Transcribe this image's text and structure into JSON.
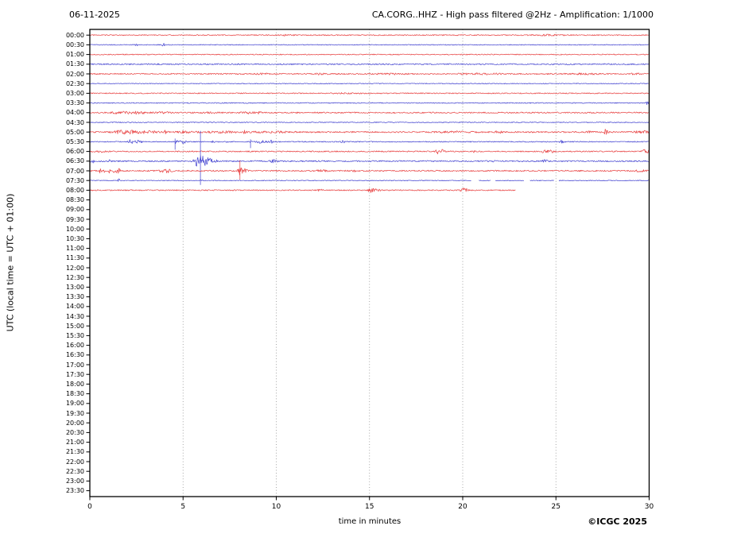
{
  "header": {
    "date": "06-11-2025",
    "title": "CA.CORG..HHZ - High pass filtered @2Hz - Amplification: 1/1000"
  },
  "footer": {
    "copyright": "©ICGC 2025"
  },
  "chart_data": {
    "type": "line",
    "subtype": "helicorder-seismogram",
    "title_left": "06-11-2025",
    "title_right": "CA.CORG..HHZ - High pass filtered @2Hz - Amplification: 1/1000",
    "xlabel": "time in minutes",
    "ylabel": "UTC (local time = UTC + 01:00)",
    "xlim": [
      0,
      30
    ],
    "x_ticks": [
      0,
      5,
      10,
      15,
      20,
      25,
      30
    ],
    "grid": "vertical-dotted-every-5-min",
    "legend": "none",
    "colors": {
      "trace_red": "#e63232",
      "trace_blue": "#3232cc",
      "grid": "#909090",
      "axis": "#000000"
    },
    "minutes_per_row": 30,
    "rows": [
      {
        "label": "00:00",
        "color": "red",
        "base": 0.65,
        "end": 30,
        "events": [
          [
            10.5,
            0.5,
            0.5
          ],
          [
            24.5,
            0.5,
            1.0
          ]
        ]
      },
      {
        "label": "00:30",
        "color": "blue",
        "base": 0.5,
        "end": 30,
        "events": [
          [
            2.5,
            1.3,
            0.06
          ],
          [
            3.95,
            1.8,
            0.06
          ]
        ]
      },
      {
        "label": "01:00",
        "color": "red",
        "base": 0.6,
        "end": 30,
        "events": []
      },
      {
        "label": "01:30",
        "color": "blue",
        "base": 0.8,
        "end": 30,
        "events": []
      },
      {
        "label": "02:00",
        "color": "red",
        "base": 0.8,
        "end": 30,
        "events": [
          [
            9.4,
            0.6,
            0.5
          ],
          [
            12.3,
            0.6,
            0.4
          ],
          [
            16,
            0.5,
            0.8
          ],
          [
            21,
            0.5,
            1.2
          ],
          [
            26.5,
            0.5,
            0.8
          ],
          [
            29.3,
            0.7,
            0.3
          ]
        ]
      },
      {
        "label": "02:30",
        "color": "blue",
        "base": 0.5,
        "end": 30,
        "events": []
      },
      {
        "label": "03:00",
        "color": "red",
        "base": 0.65,
        "end": 30,
        "events": [
          [
            14,
            0.4,
            1.0
          ]
        ]
      },
      {
        "label": "03:30",
        "color": "blue",
        "base": 0.55,
        "end": 30,
        "events": [
          [
            29.92,
            2.4,
            0.08
          ]
        ]
      },
      {
        "label": "04:00",
        "color": "red",
        "base": 0.8,
        "end": 30,
        "events": [
          [
            1.5,
            1.0,
            0.5
          ],
          [
            2.5,
            1.2,
            0.7
          ],
          [
            4,
            0.8,
            0.4
          ],
          [
            6.5,
            0.5,
            0.5
          ],
          [
            8.5,
            0.9,
            0.5
          ],
          [
            9.1,
            1.2,
            0.12
          ]
        ]
      },
      {
        "label": "04:30",
        "color": "blue",
        "base": 0.55,
        "end": 30,
        "events": []
      },
      {
        "label": "05:00",
        "color": "red",
        "base": 0.9,
        "end": 30,
        "events": [
          [
            1.6,
            1.5,
            0.4
          ],
          [
            2.3,
            1.9,
            0.5
          ],
          [
            3.2,
            1.5,
            0.4
          ],
          [
            4.05,
            3.0,
            0.06
          ],
          [
            5,
            0.9,
            0.6
          ],
          [
            7,
            0.8,
            0.9
          ],
          [
            8.3,
            1.8,
            0.06
          ],
          [
            10,
            0.7,
            1.2
          ],
          [
            19.5,
            0.6,
            0.8
          ],
          [
            21.9,
            2.2,
            0.15
          ],
          [
            26.8,
            1.3,
            0.12
          ],
          [
            27.7,
            4.0,
            0.1
          ],
          [
            29.6,
            1.8,
            0.3
          ]
        ]
      },
      {
        "label": "05:30",
        "color": "blue",
        "base": 0.6,
        "end": 30,
        "events": [
          [
            2.2,
            2.6,
            0.12
          ],
          [
            2.6,
            2.2,
            0.18
          ],
          [
            4.6,
            2.8,
            0.1
          ],
          [
            5.0,
            2.4,
            0.14
          ],
          [
            6.6,
            1.4,
            0.08
          ],
          [
            7.4,
            1.1,
            0.08
          ],
          [
            8.62,
            2.3,
            0.05
          ],
          [
            9.2,
            2.0,
            0.22
          ],
          [
            9.7,
            1.6,
            0.14
          ],
          [
            13.6,
            1.2,
            0.12
          ],
          [
            25.3,
            2.0,
            0.1
          ]
        ],
        "spikes": [
          [
            4.57,
            4,
            10
          ],
          [
            8.62,
            3,
            8
          ]
        ]
      },
      {
        "label": "06:00",
        "color": "red",
        "base": 0.75,
        "end": 30,
        "events": [
          [
            0.5,
            0.8,
            0.4
          ],
          [
            18.65,
            2.6,
            0.1
          ],
          [
            18.95,
            3.0,
            0.1
          ],
          [
            20.6,
            1.1,
            0.07
          ],
          [
            24.4,
            1.6,
            0.18
          ],
          [
            24.75,
            1.4,
            0.13
          ],
          [
            29.8,
            2.6,
            0.18
          ]
        ]
      },
      {
        "label": "06:30",
        "color": "blue",
        "base": 0.85,
        "end": 30,
        "events": [
          [
            0.15,
            2.0,
            0.08
          ],
          [
            1.05,
            1.6,
            0.08
          ],
          [
            2.3,
            1.6,
            0.1
          ],
          [
            5.75,
            3.5,
            0.18
          ],
          [
            5.95,
            6.5,
            0.22
          ],
          [
            6.2,
            4.0,
            0.22
          ],
          [
            6.5,
            2.2,
            0.18
          ],
          [
            6.85,
            2.0,
            0.08
          ],
          [
            9.85,
            1.6,
            0.18
          ],
          [
            21.7,
            1.0,
            0.07
          ],
          [
            24.4,
            2.0,
            0.13
          ]
        ],
        "spikes": [
          [
            5.93,
            38,
            30
          ]
        ]
      },
      {
        "label": "07:00",
        "color": "red",
        "base": 0.85,
        "end": 30,
        "events": [
          [
            0.55,
            2.8,
            0.07
          ],
          [
            0.8,
            2.2,
            0.06
          ],
          [
            1.05,
            2.2,
            0.06
          ],
          [
            1.35,
            2.6,
            0.09
          ],
          [
            1.55,
            2.4,
            0.09
          ],
          [
            3.9,
            1.4,
            0.3
          ],
          [
            4.2,
            1.3,
            0.2
          ],
          [
            8.05,
            4.5,
            0.13
          ],
          [
            8.3,
            1.8,
            0.13
          ],
          [
            12.4,
            1.0,
            0.3
          ],
          [
            14.2,
            0.8,
            0.1
          ],
          [
            29.5,
            1.0,
            0.3
          ]
        ],
        "spikes": [
          [
            8.05,
            13,
            11
          ]
        ]
      },
      {
        "label": "07:30",
        "color": "blue",
        "base": 0.5,
        "end": 30,
        "events": [
          [
            1.55,
            1.7,
            0.07
          ],
          [
            6.0,
            0.8,
            0.08
          ]
        ],
        "gaps": [
          [
            20.45,
            20.85
          ],
          [
            21.5,
            21.75
          ],
          [
            23.3,
            23.6
          ],
          [
            24.9,
            25.15
          ]
        ]
      },
      {
        "label": "08:00",
        "color": "red",
        "base": 0.7,
        "end": 22.85,
        "events": [
          [
            12.35,
            1.0,
            0.18
          ],
          [
            15.05,
            1.9,
            0.13
          ],
          [
            15.3,
            1.2,
            0.3
          ],
          [
            20.1,
            2.3,
            0.18
          ]
        ]
      },
      {
        "label": "08:30"
      },
      {
        "label": "09:00"
      },
      {
        "label": "09:30"
      },
      {
        "label": "10:00"
      },
      {
        "label": "10:30"
      },
      {
        "label": "11:00"
      },
      {
        "label": "11:30"
      },
      {
        "label": "12:00"
      },
      {
        "label": "12:30"
      },
      {
        "label": "13:00"
      },
      {
        "label": "13:30"
      },
      {
        "label": "14:00"
      },
      {
        "label": "14:30"
      },
      {
        "label": "15:00"
      },
      {
        "label": "15:30"
      },
      {
        "label": "16:00"
      },
      {
        "label": "16:30"
      },
      {
        "label": "17:00"
      },
      {
        "label": "17:30"
      },
      {
        "label": "18:00"
      },
      {
        "label": "18:30"
      },
      {
        "label": "19:00"
      },
      {
        "label": "19:30"
      },
      {
        "label": "20:00"
      },
      {
        "label": "20:30"
      },
      {
        "label": "21:00"
      },
      {
        "label": "21:30"
      },
      {
        "label": "22:00"
      },
      {
        "label": "22:30"
      },
      {
        "label": "23:00"
      },
      {
        "label": "23:30"
      }
    ]
  }
}
